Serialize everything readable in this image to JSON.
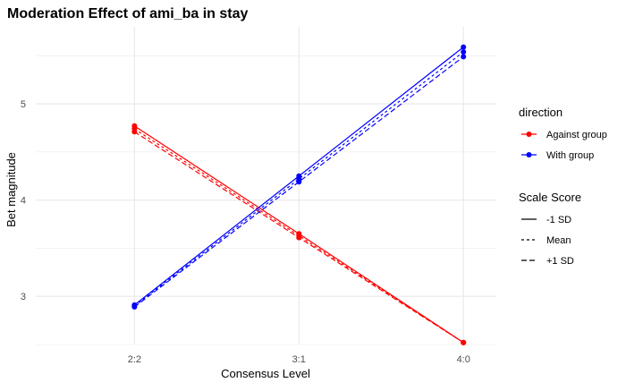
{
  "chart_data": {
    "type": "line",
    "title": "Moderation Effect of ami_ba in stay",
    "xlabel": "Consensus Level",
    "ylabel": "Bet magnitude",
    "categories": [
      "2:2",
      "3:1",
      "4:0"
    ],
    "ylim": [
      2.5,
      5.8
    ],
    "yticks": [
      3,
      4,
      5
    ],
    "grid": true,
    "legend_position": "right",
    "colors": {
      "Against group": "#ff0000",
      "With group": "#0000ff"
    },
    "direction_legend": {
      "title": "direction",
      "entries": [
        "Against group",
        "With group"
      ]
    },
    "scale_legend": {
      "title": "Scale Score",
      "entries": [
        {
          "label": "-1 SD",
          "dash": "solid"
        },
        {
          "label": "Mean",
          "dash": "dotted"
        },
        {
          "label": "+1 SD",
          "dash": "dashed"
        }
      ]
    },
    "series": [
      {
        "direction": "Against group",
        "scale": "-1 SD",
        "values": [
          4.77,
          3.65,
          2.52
        ]
      },
      {
        "direction": "Against group",
        "scale": "Mean",
        "values": [
          4.74,
          3.63,
          2.52
        ]
      },
      {
        "direction": "Against group",
        "scale": "+1 SD",
        "values": [
          4.71,
          3.61,
          2.52
        ]
      },
      {
        "direction": "With group",
        "scale": "-1 SD",
        "values": [
          2.91,
          4.25,
          5.59
        ]
      },
      {
        "direction": "With group",
        "scale": "Mean",
        "values": [
          2.9,
          4.22,
          5.54
        ]
      },
      {
        "direction": "With group",
        "scale": "+1 SD",
        "values": [
          2.89,
          4.19,
          5.49
        ]
      }
    ]
  }
}
